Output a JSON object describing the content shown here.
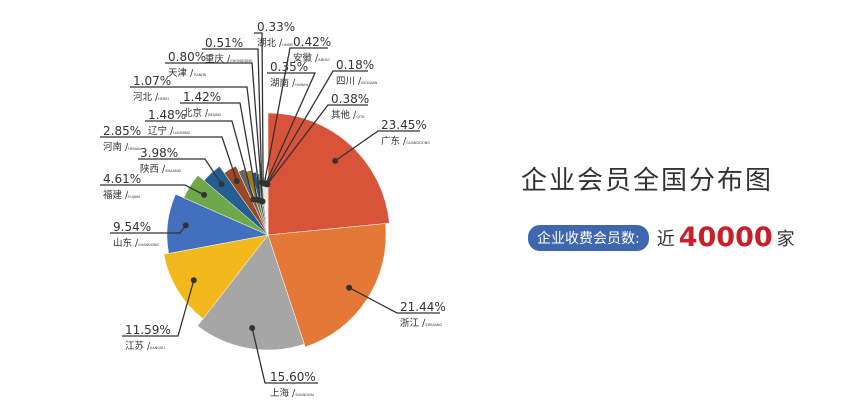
{
  "title": "企业会员全国分布图",
  "stat": {
    "label": "企业收费会员数:",
    "prefix": "近",
    "value": "40000",
    "unit": "家",
    "value_color": "#c8202a",
    "badge_color": "#3f67b0"
  },
  "chart_data": {
    "type": "pie",
    "title": "",
    "slices": [
      {
        "name": "广东",
        "pinyin": "GUANGDONG",
        "value": 23.45,
        "label": "23.45%",
        "color": "#d9533a"
      },
      {
        "name": "浙江",
        "pinyin": "ZHEJIANG",
        "value": 21.44,
        "label": "21.44%",
        "color": "#e47937"
      },
      {
        "name": "上海",
        "pinyin": "SHANGHAI",
        "value": 15.6,
        "label": "15.60%",
        "color": "#a6a6a6"
      },
      {
        "name": "江苏",
        "pinyin": "JIANGSU",
        "value": 11.59,
        "label": "11.59%",
        "color": "#f3b81c"
      },
      {
        "name": "山东",
        "pinyin": "SHANDONG",
        "value": 9.54,
        "label": "9.54%",
        "color": "#4270bf"
      },
      {
        "name": "福建",
        "pinyin": "FUJIAN",
        "value": 4.61,
        "label": "4.61%",
        "color": "#6ea84a"
      },
      {
        "name": "陕西",
        "pinyin": "SHAANXI",
        "value": 3.98,
        "label": "3.98%",
        "color": "#275e92"
      },
      {
        "name": "河南",
        "pinyin": "HENAN",
        "value": 2.85,
        "label": "2.85%",
        "color": "#9c4a26"
      },
      {
        "name": "辽宁",
        "pinyin": "LIAONING",
        "value": 1.48,
        "label": "1.48%",
        "color": "#666666"
      },
      {
        "name": "北京",
        "pinyin": "BEIJING",
        "value": 1.42,
        "label": "1.42%",
        "color": "#9b7b1f"
      },
      {
        "name": "河北",
        "pinyin": "HEBEI",
        "value": 1.07,
        "label": "1.07%",
        "color": "#2b4f86"
      },
      {
        "name": "天津",
        "pinyin": "TIANJIN",
        "value": 0.8,
        "label": "0.80%",
        "color": "#5f8a3c"
      },
      {
        "name": "重庆",
        "pinyin": "CHONGQING",
        "value": 0.51,
        "label": "0.51%",
        "color": "#7b9fd6"
      },
      {
        "name": "湖北",
        "pinyin": "HUBEI",
        "value": 0.33,
        "label": "0.33%",
        "color": "#e89a6a"
      },
      {
        "name": "安徽",
        "pinyin": "ANHUI",
        "value": 0.42,
        "label": "0.42%",
        "color": "#c9c9c9"
      },
      {
        "name": "湖南",
        "pinyin": "HUNAN",
        "value": 0.35,
        "label": "0.35%",
        "color": "#f7cf6b"
      },
      {
        "name": "四川",
        "pinyin": "SICHUAN",
        "value": 0.18,
        "label": "0.18%",
        "color": "#8eaadb"
      },
      {
        "name": "其他",
        "pinyin": "QITA",
        "value": 0.38,
        "label": "0.38%",
        "color": "#a9d18e"
      }
    ]
  }
}
